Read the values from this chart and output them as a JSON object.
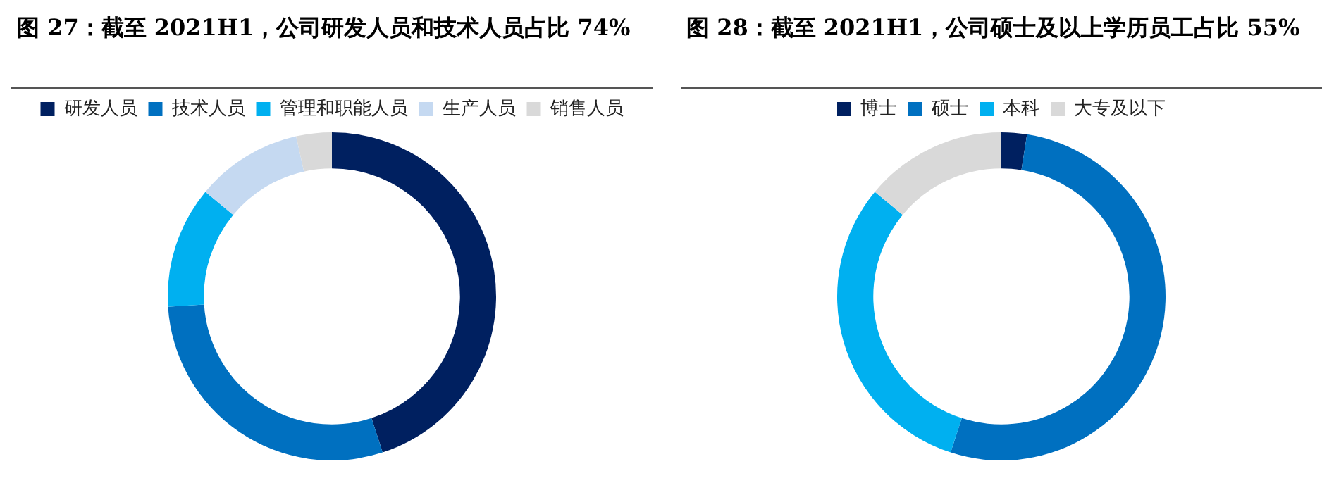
{
  "chart_data": [
    {
      "type": "donut",
      "title": "图 27：截至 2021H1，公司研发人员和技术人员占比 74%",
      "categories": [
        "研发人员",
        "技术人员",
        "管理和职能人员",
        "生产人员",
        "销售人员"
      ],
      "values": [
        45,
        29,
        12,
        10.5,
        3.5
      ],
      "colors": [
        "#002060",
        "#0070c0",
        "#00b0f0",
        "#c5d9f1",
        "#d9d9d9"
      ],
      "legend": "top"
    },
    {
      "type": "donut",
      "title": "图 28：截至 2021H1，公司硕士及以上学历员工占比 55%",
      "categories": [
        "博士",
        "硕士",
        "本科",
        "大专及以下"
      ],
      "values": [
        2.5,
        52.5,
        31,
        14
      ],
      "colors": [
        "#002060",
        "#0070c0",
        "#00b0f0",
        "#d9d9d9"
      ],
      "legend": "top"
    }
  ]
}
